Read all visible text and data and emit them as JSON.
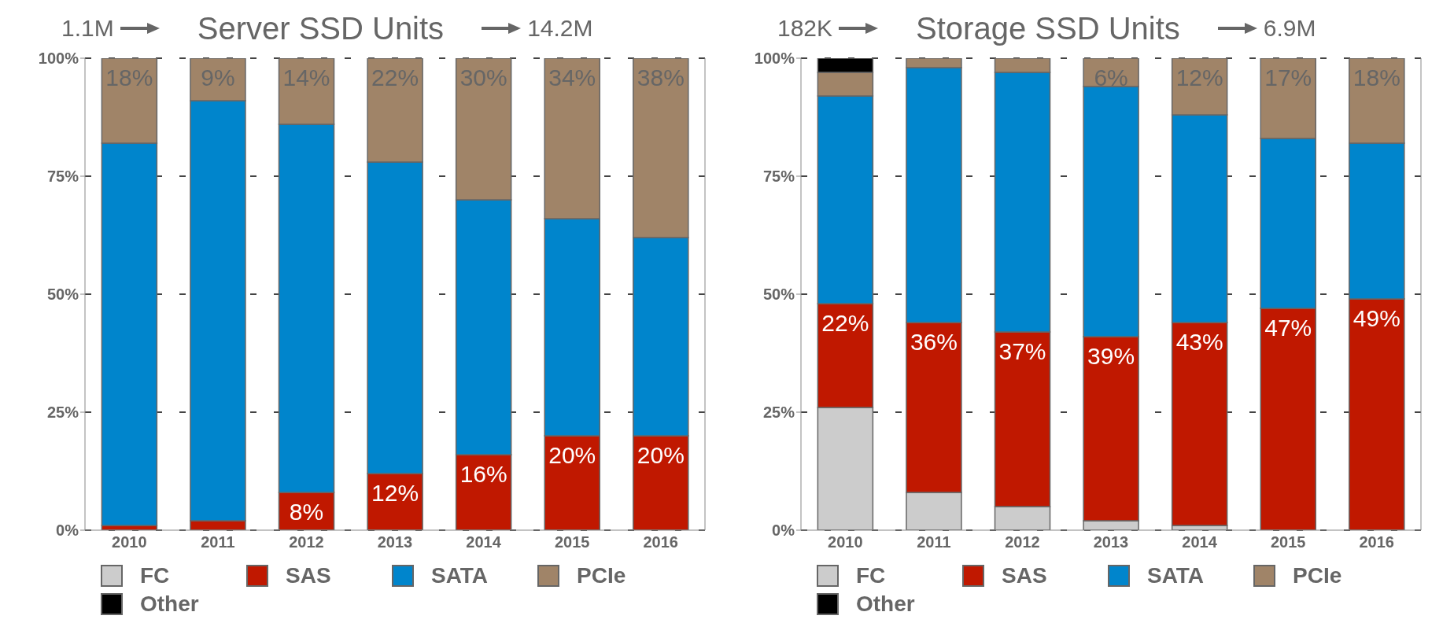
{
  "chart_data": [
    {
      "type": "bar",
      "title": "Server SSD Units",
      "annotations": [
        "1.1M",
        "14.2M"
      ],
      "stacked": true,
      "categories": [
        "2010",
        "2011",
        "2012",
        "2013",
        "2014",
        "2015",
        "2016"
      ],
      "ylim": [
        0,
        100
      ],
      "yticks": [
        {
          "value": 0,
          "label": "0%"
        },
        {
          "value": 25,
          "label": "25%"
        },
        {
          "value": 50,
          "label": "50%"
        },
        {
          "value": 75,
          "label": "75%"
        },
        {
          "value": 100,
          "label": "100%"
        }
      ],
      "grid": "y",
      "legend": "bottom",
      "series": [
        {
          "name": "FC",
          "color": "#cccccc",
          "values": [
            0,
            0,
            0,
            0,
            0,
            0,
            0
          ]
        },
        {
          "name": "SAS",
          "color": "#c01800",
          "values": [
            1,
            2,
            8,
            12,
            16,
            20,
            20
          ],
          "value_labels": [
            null,
            null,
            "8%",
            "12%",
            "16%",
            "20%",
            "20%"
          ]
        },
        {
          "name": "SATA",
          "color": "#0085cc",
          "values": [
            81,
            89,
            78,
            66,
            54,
            46,
            42
          ]
        },
        {
          "name": "PCIe",
          "color": "#a08468",
          "values": [
            18,
            9,
            14,
            22,
            30,
            34,
            38
          ],
          "value_labels": [
            "18%",
            "9%",
            "14%",
            "22%",
            "30%",
            "34%",
            "38%"
          ]
        },
        {
          "name": "Other",
          "color": "#000000",
          "values": [
            0,
            0,
            0,
            0,
            0,
            0,
            0
          ]
        }
      ]
    },
    {
      "type": "bar",
      "title": "Storage SSD Units",
      "annotations": [
        "182K",
        "6.9M"
      ],
      "stacked": true,
      "categories": [
        "2010",
        "2011",
        "2012",
        "2013",
        "2014",
        "2015",
        "2016"
      ],
      "ylim": [
        0,
        100
      ],
      "yticks": [
        {
          "value": 0,
          "label": "0%"
        },
        {
          "value": 25,
          "label": "25%"
        },
        {
          "value": 50,
          "label": "50%"
        },
        {
          "value": 75,
          "label": "75%"
        },
        {
          "value": 100,
          "label": "100%"
        }
      ],
      "grid": "y",
      "legend": "bottom",
      "series": [
        {
          "name": "FC",
          "color": "#cccccc",
          "values": [
            26,
            8,
            5,
            2,
            1,
            0,
            0
          ]
        },
        {
          "name": "SAS",
          "color": "#c01800",
          "values": [
            22,
            36,
            37,
            39,
            43,
            47,
            49
          ],
          "value_labels": [
            "22%",
            "36%",
            "37%",
            "39%",
            "43%",
            "47%",
            "49%"
          ]
        },
        {
          "name": "SATA",
          "color": "#0085cc",
          "values": [
            44,
            54,
            55,
            53,
            44,
            36,
            33
          ]
        },
        {
          "name": "PCIe",
          "color": "#a08468",
          "values": [
            5,
            2,
            3,
            6,
            12,
            17,
            18
          ],
          "value_labels": [
            null,
            null,
            null,
            "6%",
            "12%",
            "17%",
            "18%"
          ]
        },
        {
          "name": "Other",
          "color": "#000000",
          "values": [
            3,
            0,
            0,
            0,
            0,
            0,
            0
          ]
        }
      ]
    }
  ]
}
